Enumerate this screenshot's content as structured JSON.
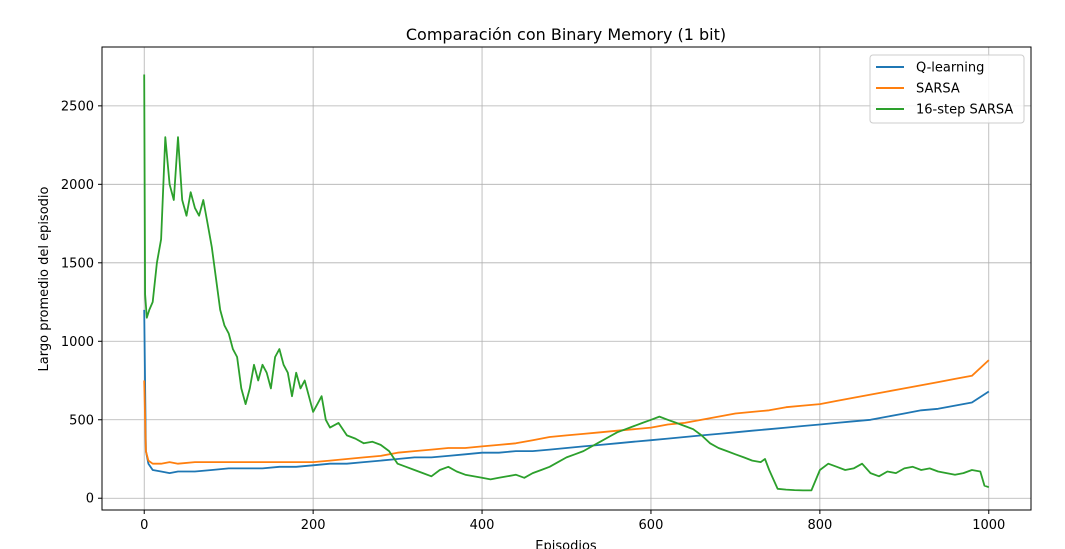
{
  "chart_data": {
    "type": "line",
    "title": "Comparación con Binary Memory (1 bit)",
    "xlabel": "Episodios",
    "ylabel": "Largo promedio del episodio",
    "xlim": [
      -50,
      1050
    ],
    "ylim": [
      -75,
      2875
    ],
    "xticks": [
      0,
      200,
      400,
      600,
      800,
      1000
    ],
    "yticks": [
      0,
      500,
      1000,
      1500,
      2000,
      2500
    ],
    "grid": true,
    "legend_position": "top-right",
    "series": [
      {
        "name": "Q-learning",
        "color": "#1f77b4",
        "x": [
          0,
          2,
          5,
          10,
          20,
          30,
          40,
          60,
          80,
          100,
          120,
          140,
          160,
          180,
          200,
          220,
          240,
          260,
          280,
          300,
          320,
          340,
          360,
          380,
          400,
          420,
          440,
          460,
          480,
          500,
          520,
          540,
          560,
          580,
          600,
          620,
          640,
          660,
          680,
          700,
          720,
          740,
          760,
          780,
          800,
          820,
          840,
          860,
          880,
          900,
          920,
          940,
          960,
          980,
          1000
        ],
        "values": [
          1200,
          300,
          220,
          180,
          170,
          160,
          170,
          170,
          180,
          190,
          190,
          190,
          200,
          200,
          210,
          220,
          220,
          230,
          240,
          250,
          260,
          260,
          270,
          280,
          290,
          290,
          300,
          300,
          310,
          320,
          330,
          340,
          350,
          360,
          370,
          380,
          390,
          400,
          410,
          420,
          430,
          440,
          450,
          460,
          470,
          480,
          490,
          500,
          520,
          540,
          560,
          570,
          590,
          610,
          680
        ]
      },
      {
        "name": "SARSA",
        "color": "#ff7f0e",
        "x": [
          0,
          2,
          5,
          10,
          20,
          30,
          40,
          60,
          80,
          100,
          120,
          140,
          160,
          180,
          200,
          220,
          240,
          260,
          280,
          300,
          320,
          340,
          360,
          380,
          400,
          420,
          440,
          460,
          480,
          500,
          520,
          540,
          560,
          580,
          600,
          620,
          640,
          660,
          680,
          700,
          720,
          740,
          760,
          780,
          800,
          820,
          840,
          860,
          880,
          900,
          920,
          940,
          960,
          980,
          1000
        ],
        "values": [
          750,
          300,
          240,
          220,
          220,
          230,
          220,
          230,
          230,
          230,
          230,
          230,
          230,
          230,
          230,
          240,
          250,
          260,
          270,
          290,
          300,
          310,
          320,
          320,
          330,
          340,
          350,
          370,
          390,
          400,
          410,
          420,
          430,
          440,
          450,
          470,
          480,
          500,
          520,
          540,
          550,
          560,
          580,
          590,
          600,
          620,
          640,
          660,
          680,
          700,
          720,
          740,
          760,
          780,
          880
        ]
      },
      {
        "name": "16-step SARSA",
        "color": "#2ca02c",
        "x": [
          0,
          1,
          3,
          6,
          10,
          15,
          20,
          25,
          30,
          35,
          40,
          45,
          50,
          55,
          60,
          65,
          70,
          75,
          80,
          85,
          90,
          95,
          100,
          105,
          110,
          115,
          120,
          125,
          130,
          135,
          140,
          145,
          150,
          155,
          160,
          165,
          170,
          175,
          180,
          185,
          190,
          195,
          200,
          205,
          210,
          215,
          220,
          230,
          240,
          250,
          260,
          270,
          280,
          290,
          300,
          310,
          320,
          330,
          340,
          350,
          360,
          370,
          380,
          390,
          400,
          410,
          420,
          430,
          440,
          450,
          460,
          470,
          480,
          490,
          500,
          510,
          520,
          530,
          540,
          550,
          560,
          570,
          580,
          590,
          600,
          610,
          620,
          630,
          640,
          650,
          660,
          670,
          680,
          690,
          700,
          710,
          720,
          730,
          735,
          740,
          745,
          750,
          760,
          770,
          780,
          790,
          800,
          810,
          820,
          830,
          840,
          850,
          860,
          870,
          880,
          890,
          900,
          910,
          920,
          930,
          940,
          950,
          960,
          970,
          980,
          990,
          995,
          1000
        ],
        "values": [
          2700,
          1300,
          1150,
          1200,
          1250,
          1500,
          1650,
          2300,
          2000,
          1900,
          2300,
          1900,
          1800,
          1950,
          1850,
          1800,
          1900,
          1750,
          1600,
          1400,
          1200,
          1100,
          1050,
          950,
          900,
          700,
          600,
          700,
          850,
          750,
          850,
          800,
          700,
          900,
          950,
          850,
          800,
          650,
          800,
          700,
          750,
          650,
          550,
          600,
          650,
          500,
          450,
          480,
          400,
          380,
          350,
          360,
          340,
          300,
          220,
          200,
          180,
          160,
          140,
          180,
          200,
          170,
          150,
          140,
          130,
          120,
          130,
          140,
          150,
          130,
          160,
          180,
          200,
          230,
          260,
          280,
          300,
          330,
          360,
          390,
          420,
          440,
          460,
          480,
          500,
          520,
          500,
          480,
          460,
          440,
          400,
          350,
          320,
          300,
          280,
          260,
          240,
          230,
          250,
          180,
          120,
          60,
          55,
          52,
          50,
          50,
          180,
          220,
          200,
          180,
          190,
          220,
          160,
          140,
          170,
          160,
          190,
          200,
          180,
          190,
          170,
          160,
          150,
          160,
          180,
          170,
          80,
          70
        ]
      }
    ]
  }
}
